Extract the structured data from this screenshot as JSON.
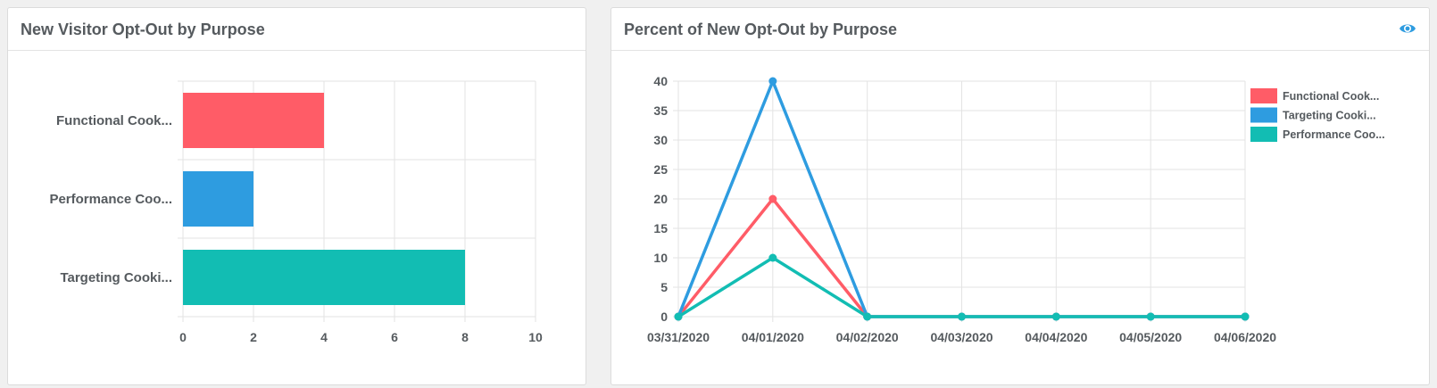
{
  "colors": {
    "red": "#ff5c67",
    "blue": "#2e9ce0",
    "teal": "#12bdb3",
    "grid": "#e3e3e3",
    "text": "#555a5e"
  },
  "left_panel": {
    "title": "New Visitor Opt-Out by Purpose"
  },
  "right_panel": {
    "title": "Percent of New Opt-Out by Purpose",
    "icon": "eye-icon"
  },
  "chart_data": [
    {
      "type": "bar",
      "orientation": "horizontal",
      "categories": [
        "Functional Cook...",
        "Performance Coo...",
        "Targeting Cooki..."
      ],
      "values": [
        4,
        2,
        8
      ],
      "colors": [
        "#ff5c67",
        "#2e9ce0",
        "#12bdb3"
      ],
      "xlim": [
        0,
        10
      ],
      "xticks": [
        "0",
        "2",
        "4",
        "6",
        "8",
        "10"
      ],
      "grid": true
    },
    {
      "type": "line",
      "x": [
        "03/31/2020",
        "04/01/2020",
        "04/02/2020",
        "04/03/2020",
        "04/04/2020",
        "04/05/2020",
        "04/06/2020"
      ],
      "series": [
        {
          "name": "Functional Cook...",
          "color": "#ff5c67",
          "values": [
            0,
            20,
            0,
            0,
            0,
            0,
            0
          ]
        },
        {
          "name": "Targeting Cooki...",
          "color": "#2e9ce0",
          "values": [
            0,
            40,
            0,
            0,
            0,
            0,
            0
          ]
        },
        {
          "name": "Performance Coo...",
          "color": "#12bdb3",
          "values": [
            0,
            10,
            0,
            0,
            0,
            0,
            0
          ]
        }
      ],
      "ylim": [
        0,
        40
      ],
      "yticks": [
        "0",
        "5",
        "10",
        "15",
        "20",
        "25",
        "30",
        "35",
        "40"
      ],
      "grid": true,
      "legend": "top-right"
    }
  ]
}
